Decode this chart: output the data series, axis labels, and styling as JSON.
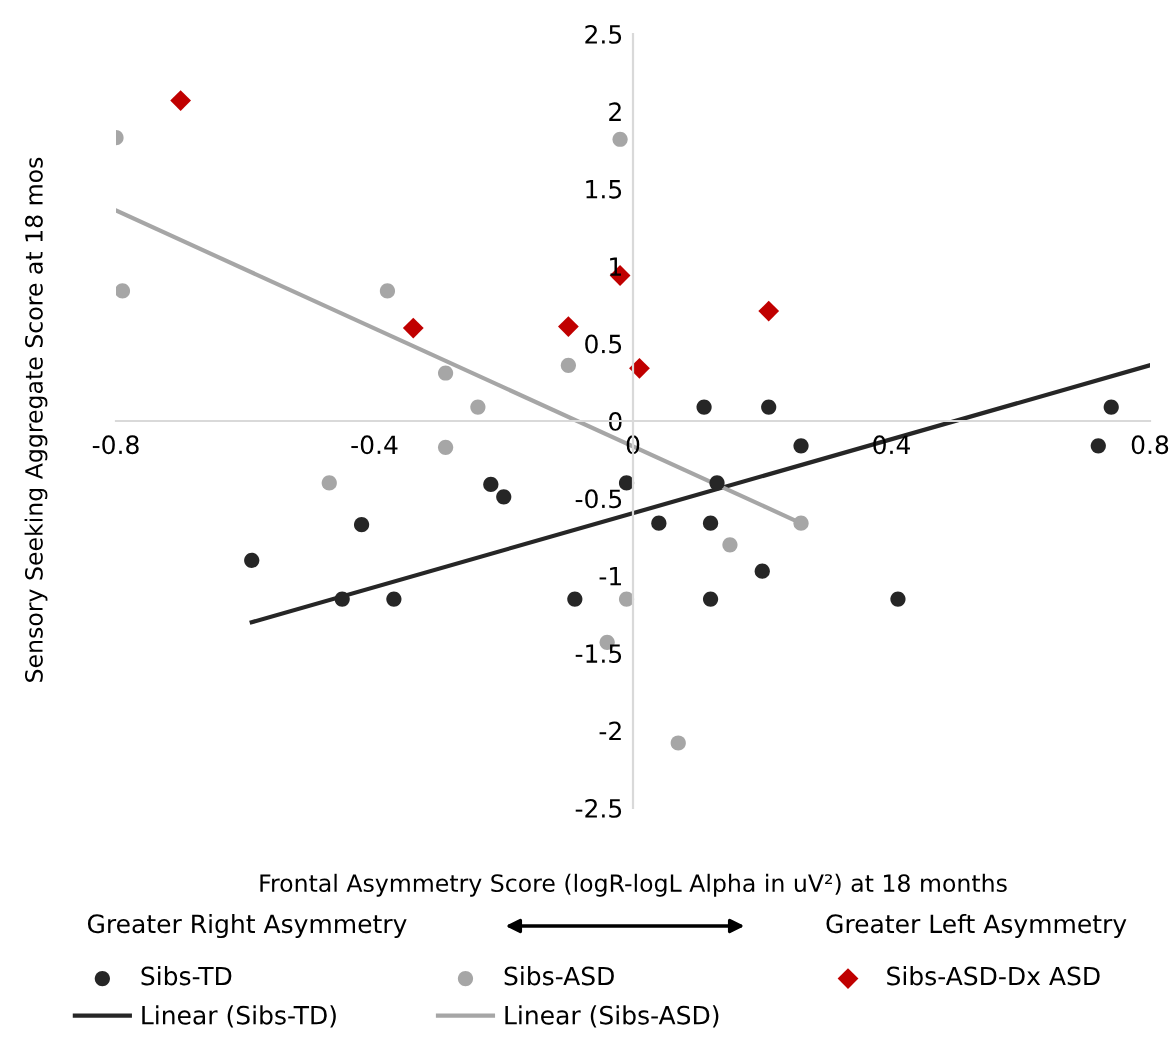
{
  "chart_data": {
    "type": "scatter",
    "xlabel": "Frontal Asymmetry Score (logR-logL Alpha in uV²) at 18 months",
    "ylabel": "Sensory Seeking Aggregate Score at 18 mos",
    "xlim": [
      -0.8,
      0.8
    ],
    "xticks": [
      -0.8,
      -0.4,
      0,
      0.4,
      0.8
    ],
    "ylim": [
      -2.5,
      2.5
    ],
    "yticks": [
      -2.5,
      -2,
      -1.5,
      -1,
      -0.5,
      0,
      0.5,
      1,
      1.5,
      2,
      2.5
    ],
    "grid": false,
    "legend": "bottom",
    "annotations": [
      "Greater Right Asymmetry",
      "Greater Left Asymmetry"
    ],
    "series": [
      {
        "name": "Sibs-TD",
        "marker": "circle",
        "color": "#262626",
        "x": [
          0.11,
          0.21,
          0.74,
          0.72,
          0.26,
          -0.01,
          0.13,
          0.04,
          0.12,
          0.2,
          0.12,
          0.41,
          -0.59,
          -0.42,
          -0.45,
          -0.37,
          -0.22,
          -0.2,
          -0.09
        ],
        "values": [
          0.09,
          0.09,
          0.09,
          -0.16,
          -0.16,
          -0.4,
          -0.4,
          -0.66,
          -0.66,
          -0.97,
          -1.15,
          -1.15,
          -0.9,
          -0.67,
          -1.15,
          -1.15,
          -0.41,
          -0.49,
          -1.15
        ]
      },
      {
        "name": "Sibs-ASD",
        "marker": "circle",
        "color": "#a6a6a6",
        "x": [
          -0.8,
          -0.79,
          -0.38,
          -0.29,
          -0.24,
          -0.29,
          -0.1,
          -0.02,
          -0.47,
          0.15,
          0.26,
          -0.01,
          -0.04,
          0.07
        ],
        "values": [
          1.83,
          0.84,
          0.84,
          0.31,
          0.09,
          -0.17,
          0.36,
          1.82,
          -0.4,
          -0.8,
          -0.66,
          -1.15,
          -1.43,
          -2.08
        ]
      },
      {
        "name": "Sibs-ASD-Dx ASD",
        "marker": "diamond",
        "color": "#c00000",
        "x": [
          -0.7,
          -0.34,
          -0.1,
          -0.02,
          0.01,
          0.21
        ],
        "values": [
          2.07,
          0.6,
          0.61,
          0.94,
          0.34,
          0.71
        ]
      },
      {
        "name": "Linear (Sibs-TD)",
        "type": "line",
        "line_style": "solid",
        "color": "#262626",
        "x": [
          -0.59,
          0.8
        ],
        "values": [
          -1.3,
          0.36
        ]
      },
      {
        "name": "Linear (Sibs-ASD)",
        "type": "line",
        "line_style": "solid",
        "color": "#a6a6a6",
        "x": [
          -0.8,
          0.26
        ],
        "values": [
          1.36,
          -0.66
        ]
      }
    ]
  }
}
